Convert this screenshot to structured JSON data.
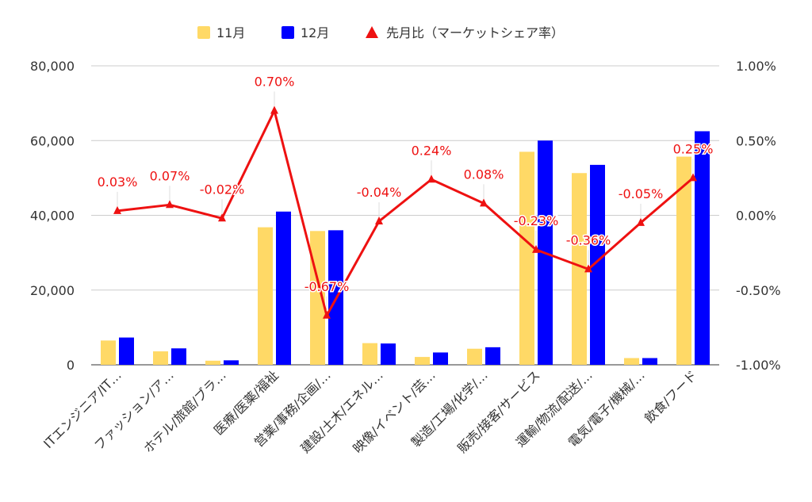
{
  "chart_data": {
    "type": "bar",
    "categories": [
      "ITエンジニア/IT…",
      "ファッション/ア…",
      "ホテル/旅館/ブラ…",
      "医療/医薬/福祉",
      "営業/事務/企画/…",
      "建設/土木/エネル…",
      "映像/イベント/芸…",
      "製造/工場/化学/…",
      "販売/接客/サービス",
      "運輸/物流/配送/…",
      "電気/電子/機械/…",
      "飲食/フード"
    ],
    "series": [
      {
        "name": "11月",
        "kind": "bar",
        "axis": "left",
        "color": "#ffd966",
        "values": [
          6500,
          3600,
          1100,
          36800,
          35800,
          5800,
          2100,
          4300,
          57000,
          51300,
          1800,
          55700
        ]
      },
      {
        "name": "12月",
        "kind": "bar",
        "axis": "left",
        "color": "#0000ff",
        "values": [
          7300,
          4400,
          1200,
          41000,
          36000,
          5700,
          3300,
          4700,
          60000,
          53500,
          1800,
          62500
        ]
      },
      {
        "name": "先月比（マーケットシェア率）",
        "kind": "line",
        "axis": "right",
        "color": "#ee1111",
        "values": [
          0.03,
          0.07,
          -0.02,
          0.7,
          -0.67,
          -0.04,
          0.24,
          0.08,
          -0.23,
          -0.36,
          -0.05,
          0.25
        ],
        "labels": [
          "0.03%",
          "0.07%",
          "-0.02%",
          "0.70%",
          "-0.67%",
          "-0.04%",
          "0.24%",
          "0.08%",
          "-0.23%",
          "-0.36%",
          "-0.05%",
          "0.25%"
        ]
      }
    ],
    "left_axis": {
      "min": 0,
      "max": 80000,
      "ticks": [
        "0",
        "20,000",
        "40,000",
        "60,000",
        "80,000"
      ]
    },
    "right_axis": {
      "min": -1.0,
      "max": 1.0,
      "ticks": [
        "-1.00%",
        "-0.50%",
        "0.00%",
        "0.50%",
        "1.00%"
      ]
    },
    "legend_position": "top",
    "grid": true
  }
}
